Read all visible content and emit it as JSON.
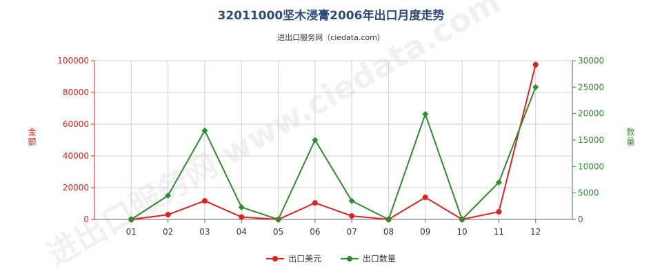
{
  "chart_data": {
    "type": "line",
    "title": "32011000坚木浸膏2006年出口月度走势",
    "subtitle": "进出口服务网（ciedata.com）",
    "categories": [
      "01",
      "02",
      "03",
      "04",
      "05",
      "06",
      "07",
      "08",
      "09",
      "10",
      "11",
      "12"
    ],
    "ylabel_left": "金额",
    "ylabel_right": "数量",
    "ylim_left": [
      0,
      100000
    ],
    "ylim_right": [
      0,
      30000
    ],
    "yticks_left": [
      "0",
      "20000",
      "40000",
      "60000",
      "80000",
      "100000"
    ],
    "yticks_right": [
      "0",
      "5000",
      "10000",
      "15000",
      "20000",
      "25000",
      "30000"
    ],
    "grid": true,
    "legend_position": "bottom",
    "series": [
      {
        "name": "出口美元",
        "axis": "left",
        "color": "#e02020",
        "values": [
          0,
          3000,
          11700,
          1500,
          0,
          10400,
          2200,
          0,
          13900,
          0,
          4800,
          97500
        ]
      },
      {
        "name": "出口数量",
        "axis": "right",
        "color": "#2e8b2e",
        "values": [
          0,
          4500,
          16800,
          2300,
          0,
          15000,
          3500,
          0,
          19900,
          0,
          7000,
          25000
        ]
      }
    ]
  }
}
